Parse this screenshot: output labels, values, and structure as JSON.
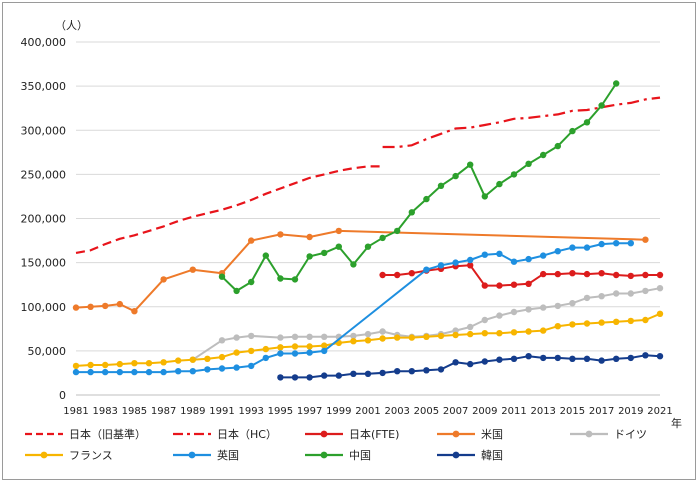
{
  "chart_data": {
    "type": "line",
    "title": "",
    "unit_label": "（人）",
    "x_unit_label": "年",
    "xlabel": "",
    "ylabel": "",
    "xlim": [
      1981,
      2021
    ],
    "ylim": [
      0,
      400000
    ],
    "y_ticks": [
      0,
      50000,
      100000,
      150000,
      200000,
      250000,
      300000,
      350000,
      400000
    ],
    "y_tick_labels": [
      "0",
      "50,000",
      "100,000",
      "150,000",
      "200,000",
      "250,000",
      "300,000",
      "350,000",
      "400,000"
    ],
    "x_ticks": [
      1981,
      1983,
      1985,
      1987,
      1989,
      1991,
      1993,
      1995,
      1997,
      1999,
      2001,
      2003,
      2005,
      2007,
      2009,
      2011,
      2013,
      2015,
      2017,
      2019,
      2021
    ],
    "x_tick_labels": [
      "1981",
      "1983",
      "1985",
      "1987",
      "1989",
      "1991",
      "1993",
      "1995",
      "1997",
      "1999",
      "2001",
      "2003",
      "2005",
      "2007",
      "2009",
      "2011",
      "2013",
      "2015",
      "2017",
      "2019",
      "2021"
    ],
    "grid": true,
    "legend_position": "bottom",
    "series": [
      {
        "name": "日本（旧基準）",
        "color": "#e8141b",
        "style": "dash",
        "marker": "none",
        "points": [
          [
            1981,
            161000
          ],
          [
            1982,
            164000
          ],
          [
            1983,
            171000
          ],
          [
            1984,
            177000
          ],
          [
            1985,
            181000
          ],
          [
            1986,
            186000
          ],
          [
            1987,
            191000
          ],
          [
            1988,
            197000
          ],
          [
            1989,
            202000
          ],
          [
            1990,
            206000
          ],
          [
            1991,
            210000
          ],
          [
            1992,
            215000
          ],
          [
            1993,
            221000
          ],
          [
            1994,
            228000
          ],
          [
            1995,
            234000
          ],
          [
            1996,
            240000
          ],
          [
            1997,
            246000
          ],
          [
            1998,
            250000
          ],
          [
            1999,
            254000
          ],
          [
            2000,
            257000
          ],
          [
            2001,
            259000
          ],
          [
            2002,
            259000
          ]
        ]
      },
      {
        "name": "日本（HC）",
        "color": "#e8141b",
        "style": "dashdot",
        "marker": "none",
        "points": [
          [
            2002,
            281000
          ],
          [
            2003,
            281000
          ],
          [
            2004,
            283000
          ],
          [
            2005,
            290000
          ],
          [
            2006,
            296000
          ],
          [
            2007,
            302000
          ],
          [
            2008,
            303000
          ],
          [
            2009,
            306000
          ],
          [
            2010,
            309000
          ],
          [
            2011,
            313000
          ],
          [
            2012,
            314000
          ],
          [
            2013,
            316000
          ],
          [
            2014,
            318000
          ],
          [
            2015,
            322000
          ],
          [
            2016,
            323000
          ],
          [
            2017,
            326000
          ],
          [
            2018,
            329000
          ],
          [
            2019,
            331000
          ],
          [
            2020,
            335000
          ],
          [
            2021,
            337000
          ]
        ]
      },
      {
        "name": "日本(FTE)",
        "color": "#dc1c1c",
        "style": "solid",
        "marker": "dot",
        "points": [
          [
            2002,
            136000
          ],
          [
            2003,
            136000
          ],
          [
            2004,
            138000
          ],
          [
            2005,
            141000
          ],
          [
            2006,
            143000
          ],
          [
            2007,
            146000
          ],
          [
            2008,
            147000
          ],
          [
            2009,
            124000
          ],
          [
            2010,
            124000
          ],
          [
            2011,
            125000
          ],
          [
            2012,
            126000
          ],
          [
            2013,
            137000
          ],
          [
            2014,
            137000
          ],
          [
            2015,
            138000
          ],
          [
            2016,
            137000
          ],
          [
            2017,
            138000
          ],
          [
            2018,
            136000
          ],
          [
            2019,
            135000
          ],
          [
            2020,
            136000
          ],
          [
            2021,
            136000
          ]
        ]
      },
      {
        "name": "米国",
        "color": "#ee7a2a",
        "style": "solid",
        "marker": "dot",
        "points": [
          [
            1981,
            99000
          ],
          [
            1982,
            100000
          ],
          [
            1983,
            101000
          ],
          [
            1984,
            103000
          ],
          [
            1985,
            95000
          ],
          [
            1987,
            131000
          ],
          [
            1989,
            142000
          ],
          [
            1991,
            138000
          ],
          [
            1993,
            175000
          ],
          [
            1995,
            182000
          ],
          [
            1997,
            179000
          ],
          [
            1999,
            186000
          ],
          [
            2020,
            176000
          ]
        ]
      },
      {
        "name": "ドイツ",
        "color": "#bdbdbd",
        "style": "solid",
        "marker": "dot",
        "points": [
          [
            1989,
            40000
          ],
          [
            1991,
            62000
          ],
          [
            1992,
            65000
          ],
          [
            1993,
            67000
          ],
          [
            1995,
            65000
          ],
          [
            1996,
            66000
          ],
          [
            1997,
            66000
          ],
          [
            1998,
            66000
          ],
          [
            1999,
            66000
          ],
          [
            2000,
            67000
          ],
          [
            2001,
            69000
          ],
          [
            2002,
            72000
          ],
          [
            2003,
            68000
          ],
          [
            2004,
            66000
          ],
          [
            2005,
            67000
          ],
          [
            2006,
            69000
          ],
          [
            2007,
            73000
          ],
          [
            2008,
            77000
          ],
          [
            2009,
            85000
          ],
          [
            2010,
            90000
          ],
          [
            2011,
            94000
          ],
          [
            2012,
            97000
          ],
          [
            2013,
            99000
          ],
          [
            2014,
            101000
          ],
          [
            2015,
            104000
          ],
          [
            2016,
            110000
          ],
          [
            2017,
            112000
          ],
          [
            2018,
            115000
          ],
          [
            2019,
            115000
          ],
          [
            2020,
            118000
          ],
          [
            2021,
            121000
          ]
        ]
      },
      {
        "name": "フランス",
        "color": "#f7b500",
        "style": "solid",
        "marker": "dot",
        "points": [
          [
            1981,
            33000
          ],
          [
            1982,
            34000
          ],
          [
            1983,
            34000
          ],
          [
            1984,
            35000
          ],
          [
            1985,
            36000
          ],
          [
            1986,
            36000
          ],
          [
            1987,
            37000
          ],
          [
            1988,
            39000
          ],
          [
            1989,
            40000
          ],
          [
            1990,
            41000
          ],
          [
            1991,
            43000
          ],
          [
            1992,
            48000
          ],
          [
            1993,
            50000
          ],
          [
            1994,
            52000
          ],
          [
            1995,
            54000
          ],
          [
            1996,
            55000
          ],
          [
            1997,
            55000
          ],
          [
            1998,
            56000
          ],
          [
            1999,
            59000
          ],
          [
            2000,
            61000
          ],
          [
            2001,
            62000
          ],
          [
            2002,
            64000
          ],
          [
            2003,
            65000
          ],
          [
            2004,
            65000
          ],
          [
            2005,
            66000
          ],
          [
            2006,
            67000
          ],
          [
            2007,
            68000
          ],
          [
            2008,
            69000
          ],
          [
            2009,
            70000
          ],
          [
            2010,
            70000
          ],
          [
            2011,
            71000
          ],
          [
            2012,
            72000
          ],
          [
            2013,
            73000
          ],
          [
            2014,
            78000
          ],
          [
            2015,
            80000
          ],
          [
            2016,
            81000
          ],
          [
            2017,
            82000
          ],
          [
            2018,
            83000
          ],
          [
            2019,
            84000
          ],
          [
            2020,
            85000
          ],
          [
            2021,
            92000
          ]
        ]
      },
      {
        "name": "英国",
        "color": "#1e8fe0",
        "style": "solid",
        "marker": "dot",
        "points": [
          [
            1981,
            26000
          ],
          [
            1982,
            26000
          ],
          [
            1983,
            26000
          ],
          [
            1984,
            26000
          ],
          [
            1985,
            26000
          ],
          [
            1986,
            26000
          ],
          [
            1987,
            26000
          ],
          [
            1988,
            27000
          ],
          [
            1989,
            27000
          ],
          [
            1990,
            29000
          ],
          [
            1991,
            30000
          ],
          [
            1992,
            31000
          ],
          [
            1993,
            33000
          ],
          [
            1994,
            42000
          ],
          [
            1995,
            47000
          ],
          [
            1996,
            47000
          ],
          [
            1997,
            48000
          ],
          [
            1998,
            50000
          ],
          [
            2005,
            142000
          ],
          [
            2006,
            147000
          ],
          [
            2007,
            150000
          ],
          [
            2008,
            153000
          ],
          [
            2009,
            159000
          ],
          [
            2010,
            160000
          ],
          [
            2011,
            151000
          ],
          [
            2012,
            154000
          ],
          [
            2013,
            158000
          ],
          [
            2014,
            163000
          ],
          [
            2015,
            167000
          ],
          [
            2016,
            167000
          ],
          [
            2017,
            171000
          ],
          [
            2018,
            172000
          ],
          [
            2019,
            172000
          ]
        ]
      },
      {
        "name": "中国",
        "color": "#2ca02c",
        "style": "solid",
        "marker": "dot",
        "points": [
          [
            1991,
            134000
          ],
          [
            1992,
            118000
          ],
          [
            1993,
            128000
          ],
          [
            1994,
            158000
          ],
          [
            1995,
            132000
          ],
          [
            1996,
            131000
          ],
          [
            1997,
            157000
          ],
          [
            1998,
            161000
          ],
          [
            1999,
            168000
          ],
          [
            2000,
            148000
          ],
          [
            2001,
            168000
          ],
          [
            2002,
            178000
          ],
          [
            2003,
            186000
          ],
          [
            2004,
            207000
          ],
          [
            2005,
            222000
          ],
          [
            2006,
            237000
          ],
          [
            2007,
            248000
          ],
          [
            2008,
            261000
          ],
          [
            2009,
            225000
          ],
          [
            2010,
            239000
          ],
          [
            2011,
            250000
          ],
          [
            2012,
            262000
          ],
          [
            2013,
            272000
          ],
          [
            2014,
            282000
          ],
          [
            2015,
            299000
          ],
          [
            2016,
            309000
          ],
          [
            2017,
            328000
          ],
          [
            2018,
            353000
          ]
        ]
      },
      {
        "name": "韓国",
        "color": "#143c8c",
        "style": "solid",
        "marker": "dot",
        "points": [
          [
            1995,
            20000
          ],
          [
            1996,
            20000
          ],
          [
            1997,
            20000
          ],
          [
            1998,
            22000
          ],
          [
            1999,
            22000
          ],
          [
            2000,
            24000
          ],
          [
            2001,
            24000
          ],
          [
            2002,
            25000
          ],
          [
            2003,
            27000
          ],
          [
            2004,
            27000
          ],
          [
            2005,
            28000
          ],
          [
            2006,
            29000
          ],
          [
            2007,
            37000
          ],
          [
            2008,
            35000
          ],
          [
            2009,
            38000
          ],
          [
            2010,
            40000
          ],
          [
            2011,
            41000
          ],
          [
            2012,
            44000
          ],
          [
            2013,
            42000
          ],
          [
            2014,
            42000
          ],
          [
            2015,
            41000
          ],
          [
            2016,
            41000
          ],
          [
            2017,
            39000
          ],
          [
            2018,
            41000
          ],
          [
            2019,
            42000
          ],
          [
            2020,
            45000
          ],
          [
            2021,
            44000
          ]
        ]
      }
    ]
  }
}
